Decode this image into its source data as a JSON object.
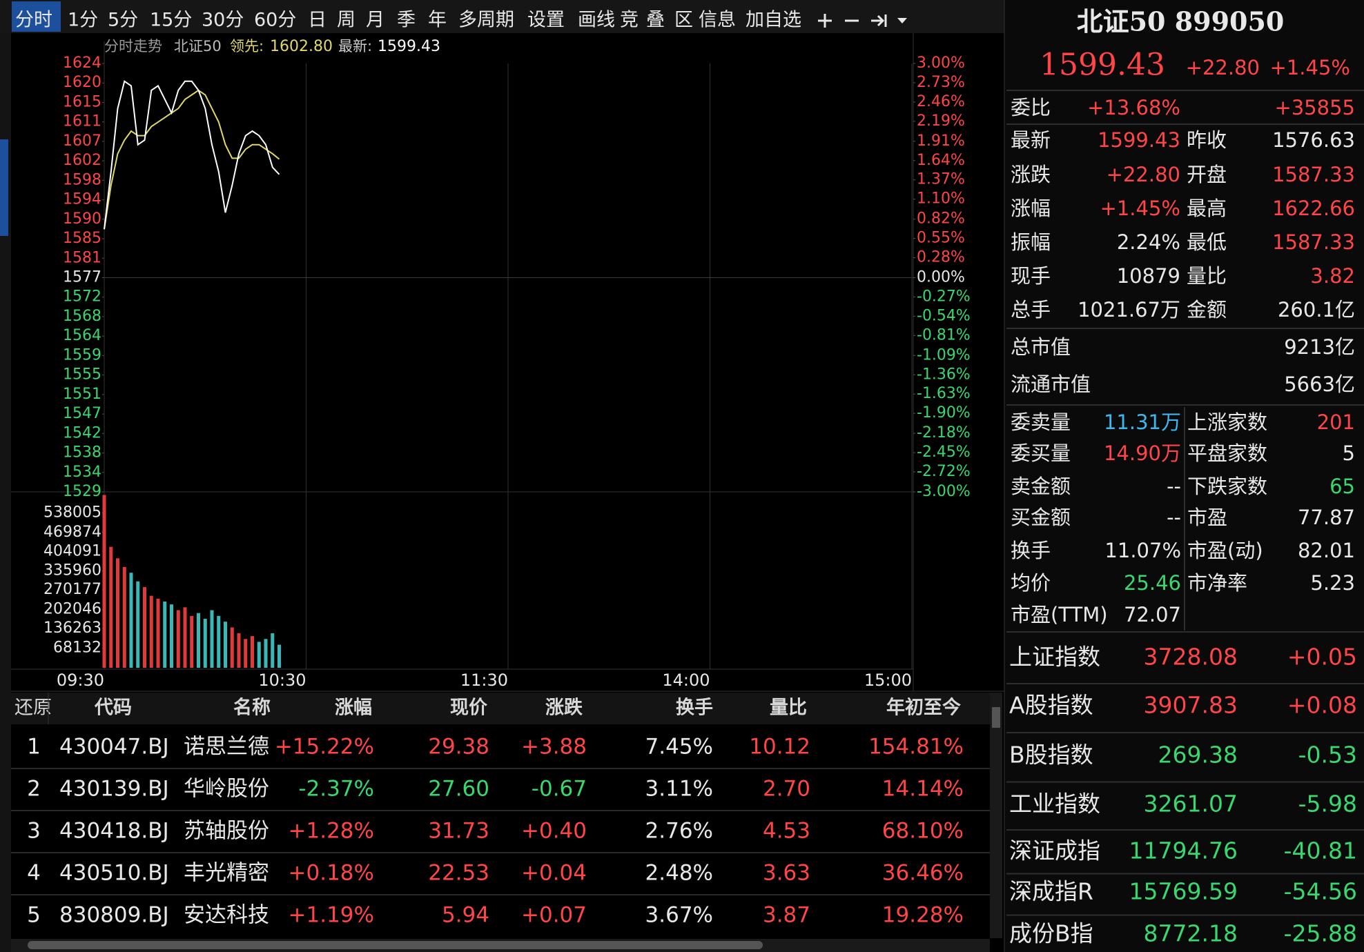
{
  "toolbar": {
    "items": [
      "分时",
      "1分",
      "5分",
      "15分",
      "30分",
      "60分",
      "日",
      "周",
      "月",
      "季",
      "年",
      "多周期",
      "设置",
      "画线",
      "竞",
      "叠",
      "区",
      "信息",
      "加自选"
    ]
  },
  "chart_data": [
    {
      "type": "line",
      "title": "分时走势",
      "subtitle": "北证50",
      "x": [
        0,
        2,
        4,
        6,
        8,
        10,
        12,
        14,
        16,
        18,
        20,
        22,
        24,
        26,
        28,
        30,
        32,
        34,
        36,
        38,
        40,
        42,
        44,
        46,
        48,
        50,
        52
      ],
      "series": [
        {
          "name": "最新:",
          "color": "#ffffff",
          "values": [
            1587.33,
            1600,
            1614,
            1620,
            1619,
            1606,
            1607,
            1618,
            1619,
            1616,
            1613,
            1618,
            1620,
            1620,
            1618,
            1614,
            1606,
            1600,
            1591,
            1597,
            1604,
            1608,
            1609,
            1608,
            1606,
            1601,
            1599.43
          ]
        },
        {
          "name": "领先:",
          "color": "#e0d86a",
          "values": [
            1587.33,
            1597,
            1604,
            1607,
            1609,
            1608,
            1608,
            1610,
            1611,
            1612,
            1613,
            1614,
            1616,
            1617,
            1618,
            1617,
            1614,
            1611,
            1606,
            1603,
            1603,
            1605,
            1606,
            1606,
            1605,
            1604,
            1602.8
          ],
          "value_labels": [
            null,
            null,
            null,
            null,
            null,
            null,
            null,
            null,
            null,
            null,
            null,
            null,
            null,
            null,
            null,
            null,
            null,
            null,
            null,
            null,
            null,
            null,
            null,
            null,
            null,
            null,
            "1602.80"
          ]
        }
      ],
      "xlim": [
        0,
        240
      ],
      "xticks": [
        {
          "value": 0,
          "label": "09:30"
        },
        {
          "value": 60,
          "label": "10:30"
        },
        {
          "value": 120,
          "label": "11:30"
        },
        {
          "value": 180,
          "label": "14:00"
        },
        {
          "value": 240,
          "label": "15:00"
        }
      ],
      "ylim": [
        1529.33,
        1623.93
      ],
      "yticks": [
        {
          "value": 1623.93,
          "label": "1624"
        },
        {
          "value": 1619.63,
          "label": "1620"
        },
        {
          "value": 1615.33,
          "label": "1615"
        },
        {
          "value": 1611.03,
          "label": "1611"
        },
        {
          "value": 1606.73,
          "label": "1607"
        },
        {
          "value": 1602.43,
          "label": "1602"
        },
        {
          "value": 1598.13,
          "label": "1598"
        },
        {
          "value": 1593.83,
          "label": "1594"
        },
        {
          "value": 1589.53,
          "label": "1590"
        },
        {
          "value": 1585.23,
          "label": "1585"
        },
        {
          "value": 1580.93,
          "label": "1581"
        },
        {
          "value": 1576.63,
          "label": "1577"
        },
        {
          "value": 1572.33,
          "label": "1572"
        },
        {
          "value": 1568.03,
          "label": "1568"
        },
        {
          "value": 1563.73,
          "label": "1564"
        },
        {
          "value": 1559.43,
          "label": "1559"
        },
        {
          "value": 1555.13,
          "label": "1555"
        },
        {
          "value": 1550.83,
          "label": "1551"
        },
        {
          "value": 1546.53,
          "label": "1547"
        },
        {
          "value": 1542.23,
          "label": "1542"
        },
        {
          "value": 1537.93,
          "label": "1538"
        },
        {
          "value": 1533.63,
          "label": "1534"
        },
        {
          "value": 1529.33,
          "label": "1529"
        }
      ],
      "y2lim": [
        -3,
        3
      ],
      "y2ticks": [
        {
          "value": 3,
          "label": "3.00%"
        },
        {
          "value": 2.73,
          "label": "2.73%"
        },
        {
          "value": 2.46,
          "label": "2.46%"
        },
        {
          "value": 2.19,
          "label": "2.19%"
        },
        {
          "value": 1.91,
          "label": "1.91%"
        },
        {
          "value": 1.64,
          "label": "1.64%"
        },
        {
          "value": 1.37,
          "label": "1.37%"
        },
        {
          "value": 1.1,
          "label": "1.10%"
        },
        {
          "value": 0.82,
          "label": "0.82%"
        },
        {
          "value": 0.55,
          "label": "0.55%"
        },
        {
          "value": 0.28,
          "label": "0.28%"
        },
        {
          "value": 0,
          "label": "0.00%"
        },
        {
          "value": -0.27,
          "label": "-0.27%"
        },
        {
          "value": -0.54,
          "label": "-0.54%"
        },
        {
          "value": -0.81,
          "label": "-0.81%"
        },
        {
          "value": -1.09,
          "label": "-1.09%"
        },
        {
          "value": -1.36,
          "label": "-1.36%"
        },
        {
          "value": -1.63,
          "label": "-1.63%"
        },
        {
          "value": -1.9,
          "label": "-1.90%"
        },
        {
          "value": -2.18,
          "label": "-2.18%"
        },
        {
          "value": -2.45,
          "label": "-2.45%"
        },
        {
          "value": -2.72,
          "label": "-2.72%"
        },
        {
          "value": -3,
          "label": "-3.00%"
        }
      ],
      "up_color": "#ff4545",
      "down_color": "#38d86e"
    },
    {
      "type": "bar",
      "x": [
        0,
        2,
        4,
        6,
        8,
        10,
        12,
        14,
        16,
        18,
        20,
        22,
        24,
        26,
        28,
        30,
        32,
        34,
        36,
        38,
        40,
        42,
        44,
        46,
        48,
        50,
        52
      ],
      "values": [
        600000,
        420000,
        380000,
        350000,
        330000,
        300000,
        280000,
        250000,
        240000,
        230000,
        220000,
        200000,
        210000,
        180000,
        190000,
        170000,
        200000,
        180000,
        160000,
        140000,
        120000,
        100000,
        110000,
        90000,
        100000,
        120000,
        80000
      ],
      "colors": [
        "#e03a3a",
        "#e03a3a",
        "#e03a3a",
        "#e03a3a",
        "#3ab8b8",
        "#3ab8b8",
        "#e03a3a",
        "#e03a3a",
        "#e03a3a",
        "#3ab8b8",
        "#3ab8b8",
        "#e03a3a",
        "#e03a3a",
        "#e03a3a",
        "#3ab8b8",
        "#3ab8b8",
        "#3ab8b8",
        "#3ab8b8",
        "#3ab8b8",
        "#e03a3a",
        "#e03a3a",
        "#e03a3a",
        "#e03a3a",
        "#3ab8b8",
        "#3ab8b8",
        "#3ab8b8",
        "#3ab8b8"
      ],
      "ylim": [
        0,
        606000
      ],
      "yticks": [
        538005,
        469874,
        404091,
        335960,
        270177,
        202046,
        136263,
        68132
      ]
    }
  ],
  "quote": {
    "title": "北证50 899050",
    "price": {
      "text": "1599.43",
      "color": "#ff4545"
    },
    "change": {
      "text": "+22.80",
      "color": "#ff4545"
    },
    "pct": {
      "text": "+1.45%",
      "color": "#ff4545"
    },
    "ratio": {
      "label": "委比",
      "values": [
        {
          "text": "+13.68%",
          "color": "#ff4545"
        },
        {
          "text": "+35855",
          "color": "#ff4545"
        }
      ]
    },
    "pairs": [
      [
        {
          "label": "最新",
          "text": "1599.43",
          "color": "#ff4545"
        },
        {
          "label": "昨收",
          "text": "1576.63",
          "color": "#e8e8e8"
        }
      ],
      [
        {
          "label": "涨跌",
          "text": "+22.80",
          "color": "#ff4545"
        },
        {
          "label": "开盘",
          "text": "1587.33",
          "color": "#ff4545"
        }
      ],
      [
        {
          "label": "涨幅",
          "text": "+1.45%",
          "color": "#ff4545"
        },
        {
          "label": "最高",
          "text": "1622.66",
          "color": "#ff4545"
        }
      ],
      [
        {
          "label": "振幅",
          "text": "2.24%",
          "color": "#e8e8e8"
        },
        {
          "label": "最低",
          "text": "1587.33",
          "color": "#ff4545"
        }
      ],
      [
        {
          "label": "现手",
          "text": "10879",
          "color": "#e8e8e8"
        },
        {
          "label": "量比",
          "text": "3.82",
          "color": "#ff4545"
        }
      ],
      [
        {
          "label": "总手",
          "text": "1021.67万",
          "color": "#e8e8e8"
        },
        {
          "label": "金额",
          "text": "260.1亿",
          "color": "#e8e8e8"
        }
      ]
    ],
    "caps": [
      {
        "label": "总市值",
        "text": "9213亿",
        "color": "#e8e8e8"
      },
      {
        "label": "流通市值",
        "text": "5663亿",
        "color": "#e8e8e8"
      }
    ],
    "depth": [
      [
        {
          "label": "委卖量",
          "text": "11.31万",
          "color": "#3cb8f0"
        },
        {
          "label": "上涨家数",
          "text": "201",
          "color": "#ff4545"
        }
      ],
      [
        {
          "label": "委买量",
          "text": "14.90万",
          "color": "#ff4545"
        },
        {
          "label": "平盘家数",
          "text": "5",
          "color": "#e8e8e8"
        }
      ],
      [
        {
          "label": "卖金额",
          "text": "--",
          "color": "#e8e8e8"
        },
        {
          "label": "下跌家数",
          "text": "65",
          "color": "#38d86e"
        }
      ],
      [
        {
          "label": "买金额",
          "text": "--",
          "color": "#e8e8e8"
        },
        {
          "label": "市盈",
          "text": "77.87",
          "color": "#e8e8e8"
        }
      ],
      [
        {
          "label": "换手",
          "text": "11.07%",
          "color": "#e8e8e8"
        },
        {
          "label": "市盈(动)",
          "text": "82.01",
          "color": "#e8e8e8"
        }
      ],
      [
        {
          "label": "均价",
          "text": "25.46",
          "color": "#38d86e"
        },
        {
          "label": "市净率",
          "text": "5.23",
          "color": "#e8e8e8"
        }
      ],
      [
        {
          "label": "市盈(TTM)",
          "text": "72.07",
          "color": "#e8e8e8"
        }
      ]
    ],
    "indices": [
      {
        "name": "上证指数",
        "value": "3728.08",
        "change": "+0.05",
        "color": "#ff4545"
      },
      {
        "name": "A股指数",
        "value": "3907.83",
        "change": "+0.08",
        "color": "#ff4545"
      },
      {
        "name": "B股指数",
        "value": "269.38",
        "change": "-0.53",
        "color": "#38d86e"
      },
      {
        "name": "工业指数",
        "value": "3261.07",
        "change": "-5.98",
        "color": "#38d86e"
      },
      {
        "name": "深证成指",
        "value": "11794.76",
        "change": "-40.81",
        "color": "#38d86e"
      },
      {
        "name": "深成指R",
        "value": "15769.59",
        "change": "-54.56",
        "color": "#38d86e"
      },
      {
        "name": "成份B指",
        "value": "8772.18",
        "change": "-25.88",
        "color": "#38d86e"
      }
    ]
  },
  "table": {
    "headers": [
      "还原",
      "代码",
      "名称",
      "涨幅",
      "现价",
      "涨跌",
      "换手",
      "量比",
      "年初至今"
    ],
    "rows": [
      {
        "cells": [
          "1",
          "430047.BJ",
          "诺思兰德",
          "+15.22%",
          "29.38",
          "+3.88",
          "7.45%",
          "10.12",
          "154.81%"
        ],
        "colors": [
          "#e8e8e8",
          "#e8e8e8",
          "#e8e8e8",
          "#ff4545",
          "#ff4545",
          "#ff4545",
          "#e8e8e8",
          "#ff4545",
          "#ff4545"
        ]
      },
      {
        "cells": [
          "2",
          "430139.BJ",
          "华岭股份",
          "-2.37%",
          "27.60",
          "-0.67",
          "3.11%",
          "2.70",
          "14.14%"
        ],
        "colors": [
          "#e8e8e8",
          "#e8e8e8",
          "#e8e8e8",
          "#38d86e",
          "#38d86e",
          "#38d86e",
          "#e8e8e8",
          "#ff4545",
          "#ff4545"
        ]
      },
      {
        "cells": [
          "3",
          "430418.BJ",
          "苏轴股份",
          "+1.28%",
          "31.73",
          "+0.40",
          "2.76%",
          "4.53",
          "68.10%"
        ],
        "colors": [
          "#e8e8e8",
          "#e8e8e8",
          "#e8e8e8",
          "#ff4545",
          "#ff4545",
          "#ff4545",
          "#e8e8e8",
          "#ff4545",
          "#ff4545"
        ]
      },
      {
        "cells": [
          "4",
          "430510.BJ",
          "丰光精密",
          "+0.18%",
          "22.53",
          "+0.04",
          "2.48%",
          "3.63",
          "36.46%"
        ],
        "colors": [
          "#e8e8e8",
          "#e8e8e8",
          "#e8e8e8",
          "#ff4545",
          "#ff4545",
          "#ff4545",
          "#e8e8e8",
          "#ff4545",
          "#ff4545"
        ]
      },
      {
        "cells": [
          "5",
          "830809.BJ",
          "安达科技",
          "+1.19%",
          "5.94",
          "+0.07",
          "3.67%",
          "3.87",
          "19.28%"
        ],
        "colors": [
          "#e8e8e8",
          "#e8e8e8",
          "#e8e8e8",
          "#ff4545",
          "#ff4545",
          "#ff4545",
          "#e8e8e8",
          "#ff4545",
          "#ff4545"
        ]
      }
    ]
  }
}
